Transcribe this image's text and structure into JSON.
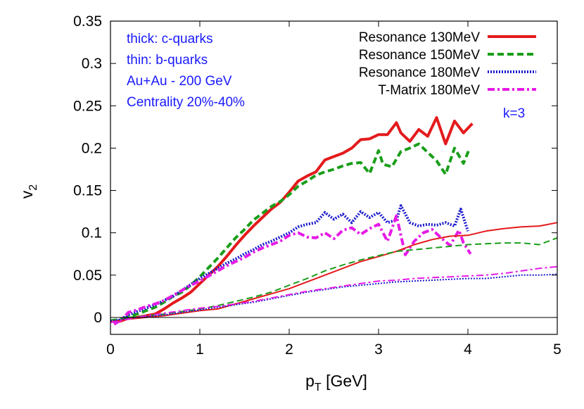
{
  "chart_data": {
    "type": "line",
    "xlabel": "p_T [GeV]",
    "ylabel": "v_2",
    "xlim": [
      0,
      5
    ],
    "ylim": [
      -0.02,
      0.35
    ],
    "x_ticks": [
      "0",
      "1",
      "2",
      "3",
      "4",
      "5"
    ],
    "y_ticks": [
      "0",
      "0.05",
      "0.1",
      "0.15",
      "0.2",
      "0.25",
      "0.3",
      "0.35"
    ],
    "grid": false,
    "legend_position": "top-right",
    "annotations": [
      "thick: c-quarks",
      "thin: b-quarks",
      "Au+Au - 200 GeV",
      "Centrality 20%-40%"
    ],
    "extra_label": "k=3",
    "series": [
      {
        "name": "Resonance 130MeV",
        "quark": "c",
        "color": "#e41a1c",
        "dash": "solid",
        "x": [
          0.04,
          0.12,
          0.2,
          0.3,
          0.4,
          0.5,
          0.6,
          0.7,
          0.8,
          0.9,
          1.0,
          1.1,
          1.2,
          1.3,
          1.4,
          1.5,
          1.6,
          1.7,
          1.8,
          1.9,
          2.0,
          2.1,
          2.2,
          2.3,
          2.4,
          2.5,
          2.6,
          2.7,
          2.8,
          2.9,
          3.0,
          3.1,
          3.2,
          3.25,
          3.35,
          3.45,
          3.55,
          3.65,
          3.75,
          3.85,
          3.95,
          4.05
        ],
        "y": [
          -0.006,
          -0.004,
          -0.001,
          0.0,
          0.002,
          0.004,
          0.01,
          0.017,
          0.023,
          0.03,
          0.04,
          0.05,
          0.06,
          0.072,
          0.085,
          0.097,
          0.108,
          0.118,
          0.128,
          0.136,
          0.148,
          0.161,
          0.167,
          0.172,
          0.186,
          0.19,
          0.194,
          0.2,
          0.21,
          0.211,
          0.216,
          0.216,
          0.23,
          0.218,
          0.208,
          0.222,
          0.214,
          0.236,
          0.205,
          0.232,
          0.218,
          0.229
        ]
      },
      {
        "name": "Resonance 150MeV",
        "quark": "c",
        "color": "#1a9e1a",
        "dash": "dashed",
        "x": [
          0.04,
          0.12,
          0.2,
          0.3,
          0.4,
          0.5,
          0.6,
          0.7,
          0.8,
          0.9,
          1.0,
          1.1,
          1.2,
          1.3,
          1.4,
          1.5,
          1.6,
          1.7,
          1.8,
          1.9,
          2.0,
          2.1,
          2.2,
          2.3,
          2.4,
          2.5,
          2.6,
          2.7,
          2.8,
          2.9,
          3.0,
          3.05,
          3.15,
          3.25,
          3.35,
          3.45,
          3.55,
          3.65,
          3.75,
          3.85,
          3.95,
          4.02
        ],
        "y": [
          -0.005,
          -0.003,
          0.001,
          0.004,
          0.008,
          0.012,
          0.018,
          0.025,
          0.03,
          0.038,
          0.048,
          0.059,
          0.07,
          0.082,
          0.094,
          0.104,
          0.115,
          0.123,
          0.131,
          0.137,
          0.145,
          0.155,
          0.161,
          0.168,
          0.172,
          0.175,
          0.179,
          0.182,
          0.183,
          0.17,
          0.197,
          0.181,
          0.178,
          0.196,
          0.2,
          0.205,
          0.195,
          0.185,
          0.169,
          0.2,
          0.182,
          0.2
        ]
      },
      {
        "name": "Resonance 180MeV",
        "quark": "c",
        "color": "#1a1acc",
        "dash": "dotted",
        "x": [
          0.04,
          0.12,
          0.2,
          0.3,
          0.4,
          0.5,
          0.6,
          0.7,
          0.8,
          0.9,
          1.0,
          1.1,
          1.2,
          1.3,
          1.4,
          1.5,
          1.6,
          1.7,
          1.8,
          1.9,
          2.0,
          2.1,
          2.2,
          2.3,
          2.4,
          2.5,
          2.6,
          2.7,
          2.8,
          2.9,
          3.0,
          3.1,
          3.2,
          3.25,
          3.35,
          3.45,
          3.55,
          3.65,
          3.75,
          3.85,
          3.92,
          4.0
        ],
        "y": [
          -0.007,
          -0.002,
          0.003,
          0.007,
          0.011,
          0.015,
          0.02,
          0.025,
          0.032,
          0.039,
          0.046,
          0.052,
          0.058,
          0.064,
          0.069,
          0.075,
          0.08,
          0.086,
          0.09,
          0.095,
          0.1,
          0.107,
          0.11,
          0.112,
          0.124,
          0.116,
          0.122,
          0.112,
          0.125,
          0.118,
          0.124,
          0.112,
          0.115,
          0.132,
          0.112,
          0.108,
          0.11,
          0.109,
          0.112,
          0.108,
          0.128,
          0.102
        ]
      },
      {
        "name": "T-Matrix 180MeV",
        "quark": "c",
        "color": "#e61ae6",
        "dash": "dash-dot",
        "x": [
          0.04,
          0.12,
          0.2,
          0.3,
          0.4,
          0.5,
          0.6,
          0.7,
          0.8,
          0.9,
          1.0,
          1.1,
          1.2,
          1.3,
          1.4,
          1.5,
          1.6,
          1.7,
          1.8,
          1.9,
          2.0,
          2.1,
          2.2,
          2.3,
          2.4,
          2.5,
          2.6,
          2.7,
          2.8,
          2.9,
          3.0,
          3.1,
          3.2,
          3.3,
          3.4,
          3.5,
          3.6,
          3.7,
          3.8,
          3.9,
          3.95,
          4.03
        ],
        "y": [
          -0.008,
          -0.003,
          0.006,
          0.009,
          0.013,
          0.016,
          0.02,
          0.026,
          0.032,
          0.038,
          0.043,
          0.049,
          0.055,
          0.061,
          0.066,
          0.071,
          0.077,
          0.082,
          0.086,
          0.09,
          0.097,
          0.1,
          0.095,
          0.094,
          0.1,
          0.093,
          0.103,
          0.106,
          0.098,
          0.105,
          0.11,
          0.09,
          0.12,
          0.074,
          0.09,
          0.1,
          0.104,
          0.094,
          0.085,
          0.103,
          0.088,
          0.075
        ]
      },
      {
        "name": "Resonance 130MeV",
        "quark": "b",
        "color": "#e41a1c",
        "dash": "solid",
        "x": [
          0.0,
          0.2,
          0.4,
          0.6,
          0.8,
          1.0,
          1.2,
          1.4,
          1.6,
          1.8,
          2.0,
          2.2,
          2.4,
          2.6,
          2.8,
          3.0,
          3.2,
          3.4,
          3.6,
          3.8,
          4.0,
          4.2,
          4.4,
          4.6,
          4.8,
          5.0
        ],
        "y": [
          -0.005,
          -0.002,
          0.0,
          0.002,
          0.005,
          0.008,
          0.01,
          0.016,
          0.022,
          0.028,
          0.034,
          0.042,
          0.05,
          0.058,
          0.066,
          0.072,
          0.078,
          0.086,
          0.092,
          0.096,
          0.097,
          0.102,
          0.105,
          0.107,
          0.108,
          0.112
        ]
      },
      {
        "name": "Resonance 150MeV",
        "quark": "b",
        "color": "#1a9e1a",
        "dash": "dashed",
        "x": [
          0.0,
          0.2,
          0.4,
          0.6,
          0.8,
          1.0,
          1.2,
          1.4,
          1.6,
          1.8,
          2.0,
          2.2,
          2.4,
          2.6,
          2.8,
          3.0,
          3.2,
          3.4,
          3.6,
          3.8,
          4.0,
          4.2,
          4.4,
          4.6,
          4.8,
          5.0
        ],
        "y": [
          -0.003,
          0.0,
          0.002,
          0.004,
          0.007,
          0.01,
          0.014,
          0.019,
          0.024,
          0.03,
          0.038,
          0.046,
          0.055,
          0.062,
          0.068,
          0.073,
          0.078,
          0.08,
          0.082,
          0.084,
          0.086,
          0.087,
          0.088,
          0.088,
          0.086,
          0.094
        ]
      },
      {
        "name": "Resonance 180MeV",
        "quark": "b",
        "color": "#1a1acc",
        "dash": "dotted",
        "x": [
          0.0,
          0.2,
          0.4,
          0.6,
          0.8,
          1.0,
          1.2,
          1.4,
          1.6,
          1.8,
          2.0,
          2.2,
          2.4,
          2.6,
          2.8,
          3.0,
          3.2,
          3.4,
          3.6,
          3.8,
          4.0,
          4.2,
          4.4,
          4.6,
          4.8,
          5.0
        ],
        "y": [
          -0.004,
          -0.001,
          0.001,
          0.003,
          0.006,
          0.009,
          0.012,
          0.015,
          0.018,
          0.022,
          0.026,
          0.03,
          0.033,
          0.036,
          0.038,
          0.04,
          0.042,
          0.043,
          0.044,
          0.045,
          0.046,
          0.046,
          0.048,
          0.05,
          0.05,
          0.051
        ]
      },
      {
        "name": "T-Matrix 180MeV",
        "quark": "b",
        "color": "#e61ae6",
        "dash": "dash-dot",
        "x": [
          0.0,
          0.2,
          0.4,
          0.6,
          0.8,
          1.0,
          1.2,
          1.4,
          1.6,
          1.8,
          2.0,
          2.2,
          2.4,
          2.6,
          2.8,
          3.0,
          3.2,
          3.4,
          3.6,
          3.8,
          4.0,
          4.2,
          4.4,
          4.6,
          4.8,
          5.0
        ],
        "y": [
          -0.006,
          -0.002,
          0.002,
          0.005,
          0.008,
          0.011,
          0.013,
          0.016,
          0.019,
          0.023,
          0.027,
          0.031,
          0.034,
          0.037,
          0.04,
          0.043,
          0.044,
          0.046,
          0.047,
          0.048,
          0.049,
          0.05,
          0.052,
          0.055,
          0.058,
          0.06
        ]
      }
    ]
  }
}
